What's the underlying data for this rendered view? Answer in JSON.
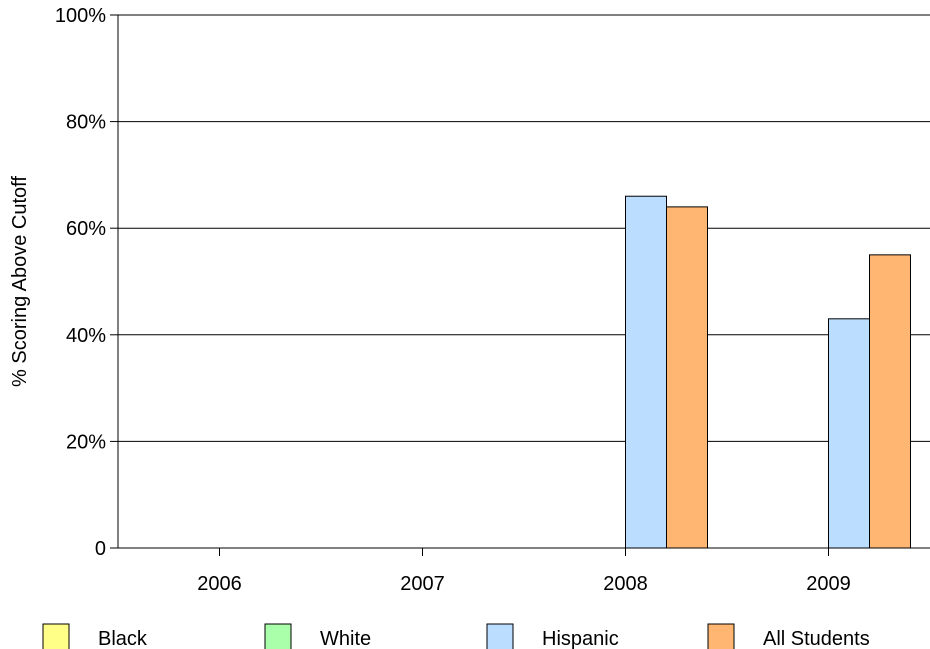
{
  "chart_data": {
    "type": "bar",
    "title": "",
    "xlabel": "",
    "ylabel": "% Scoring Above Cutoff",
    "categories": [
      "2006",
      "2007",
      "2008",
      "2009"
    ],
    "ylim": [
      0,
      100
    ],
    "y_ticks": [
      "0",
      "20%",
      "40%",
      "60%",
      "80%",
      "100%"
    ],
    "grid": true,
    "legend_placement": "bottom",
    "series": [
      {
        "name": "Black",
        "color": "#ffff88",
        "values": [
          null,
          null,
          null,
          null
        ]
      },
      {
        "name": "White",
        "color": "#aaffaa",
        "values": [
          null,
          null,
          null,
          null
        ]
      },
      {
        "name": "Hispanic",
        "color": "#bbddff",
        "values": [
          null,
          null,
          66,
          43
        ]
      },
      {
        "name": "All Students",
        "color": "#ffb673",
        "values": [
          null,
          null,
          64,
          55
        ]
      }
    ]
  }
}
